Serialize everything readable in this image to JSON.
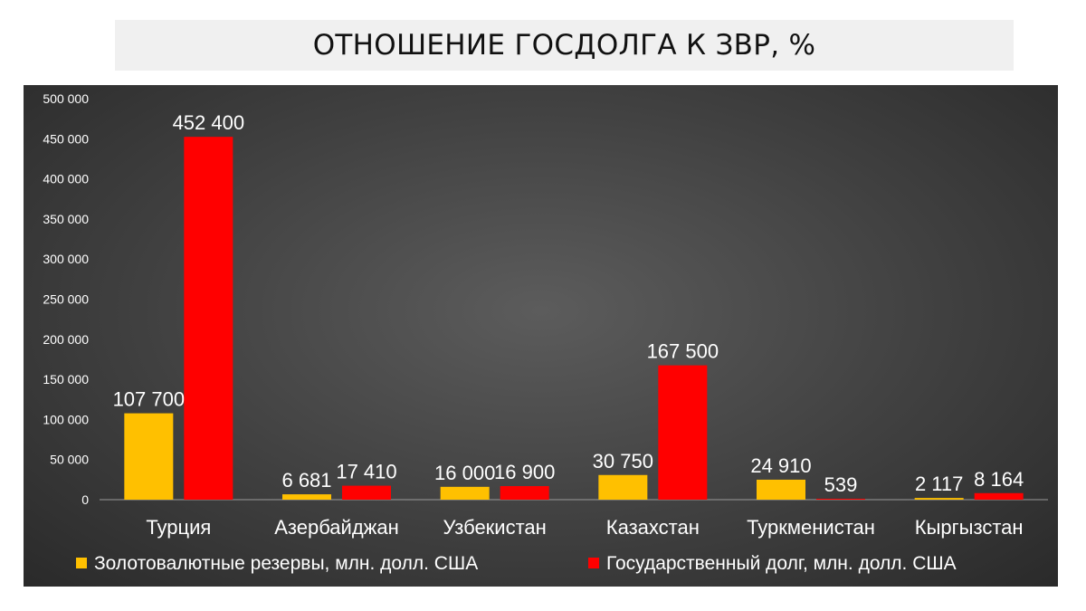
{
  "chart_data": {
    "type": "bar",
    "title": "ОТНОШЕНИЕ ГОСДОЛГА К ЗВР, %",
    "categories": [
      "Турция",
      "Азербайджан",
      "Узбекистан",
      "Казахстан",
      "Туркменистан",
      "Кыргызстан"
    ],
    "series": [
      {
        "name": "Золотовалютные резервы, млн. долл. США",
        "color": "#ffc000",
        "values": [
          107700,
          6681,
          16000,
          30750,
          24910,
          2117
        ],
        "labels": [
          "107 700",
          "6 681",
          "16 000",
          "30 750",
          "24 910",
          "2 117"
        ]
      },
      {
        "name": "Государственный долг, млн. долл. США",
        "color": "#ff0000",
        "values": [
          452400,
          17410,
          16900,
          167500,
          539,
          8164
        ],
        "labels": [
          "452 400",
          "17 410",
          "16 900",
          "167 500",
          "539",
          "8 164"
        ]
      }
    ],
    "ylim": [
      0,
      500000
    ],
    "yticks": [
      0,
      50000,
      100000,
      150000,
      200000,
      250000,
      300000,
      350000,
      400000,
      450000,
      500000
    ],
    "ytick_labels": [
      "0",
      "50 000",
      "100 000",
      "150 000",
      "200 000",
      "250 000",
      "300 000",
      "350 000",
      "400 000",
      "450 000",
      "500 000"
    ],
    "legend_position": "bottom",
    "grid": false
  }
}
